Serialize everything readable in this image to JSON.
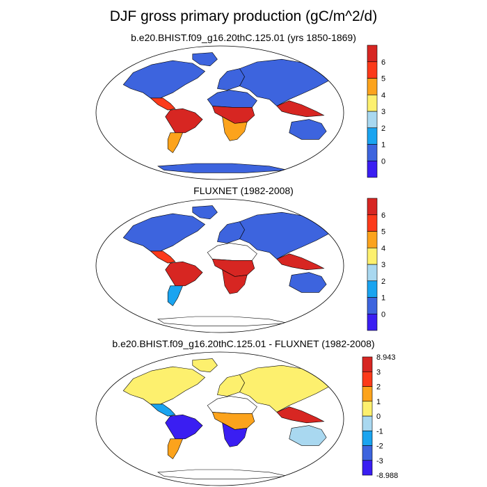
{
  "figure": {
    "title": "DJF gross primary production (gC/m^2/d)"
  },
  "colors": {
    "ocean": "#ffffff",
    "coast": "#000000",
    "nodata": "#ffffff"
  },
  "panels": [
    {
      "title": "b.e20.BHIST.f09_g16.20thC.125.01 (yrs 1850-1869)",
      "colorbar": {
        "colors": [
          "#3a1ef2",
          "#3d64de",
          "#1aa4f0",
          "#a9d8f0",
          "#fdf06e",
          "#fca31c",
          "#fc3a1a",
          "#d72622"
        ],
        "labels": [
          "0",
          "1",
          "2",
          "3",
          "4",
          "5",
          "6"
        ]
      },
      "regions": {
        "north_america": "#3d64de",
        "greenland": "#3d64de",
        "central_america": "#fc3a1a",
        "south_america": "#d72622",
        "patagonia": "#fca31c",
        "europe": "#3d64de",
        "africa_north": "#3d64de",
        "africa_central": "#d72622",
        "africa_south": "#fca31c",
        "asia": "#3d64de",
        "se_asia": "#d72622",
        "australia": "#3d64de",
        "antarctica": "#3d64de"
      }
    },
    {
      "title": "FLUXNET (1982-2008)",
      "colorbar": {
        "colors": [
          "#3a1ef2",
          "#3d64de",
          "#1aa4f0",
          "#a9d8f0",
          "#fdf06e",
          "#fca31c",
          "#fc3a1a",
          "#d72622"
        ],
        "labels": [
          "0",
          "1",
          "2",
          "3",
          "4",
          "5",
          "6"
        ]
      },
      "regions": {
        "north_america": "#3d64de",
        "greenland": "#3d64de",
        "central_america": "#fc3a1a",
        "south_america": "#d72622",
        "patagonia": "#1aa4f0",
        "europe": "#3d64de",
        "africa_north": "#ffffff",
        "africa_central": "#d72622",
        "africa_south": "#d72622",
        "asia": "#3d64de",
        "se_asia": "#d72622",
        "australia": "#3d64de",
        "antarctica": "#ffffff"
      }
    },
    {
      "title": "b.e20.BHIST.f09_g16.20thC.125.01 - FLUXNET (1982-2008)",
      "colorbar": {
        "colors": [
          "#3a1ef2",
          "#3d64de",
          "#1aa4f0",
          "#a9d8f0",
          "#fdf06e",
          "#fca31c",
          "#fc3a1a",
          "#d72622"
        ],
        "labels": [
          "-8.988",
          "-3",
          "-2",
          "-1",
          "0",
          "1",
          "2",
          "3",
          "8.943"
        ]
      },
      "regions": {
        "north_america": "#fdf06e",
        "greenland": "#fdf06e",
        "central_america": "#1aa4f0",
        "south_america": "#3a1ef2",
        "patagonia": "#fca31c",
        "europe": "#fdf06e",
        "africa_north": "#ffffff",
        "africa_central": "#fca31c",
        "africa_south": "#3a1ef2",
        "asia": "#fdf06e",
        "se_asia": "#d72622",
        "australia": "#a9d8f0",
        "antarctica": "#ffffff"
      }
    }
  ]
}
